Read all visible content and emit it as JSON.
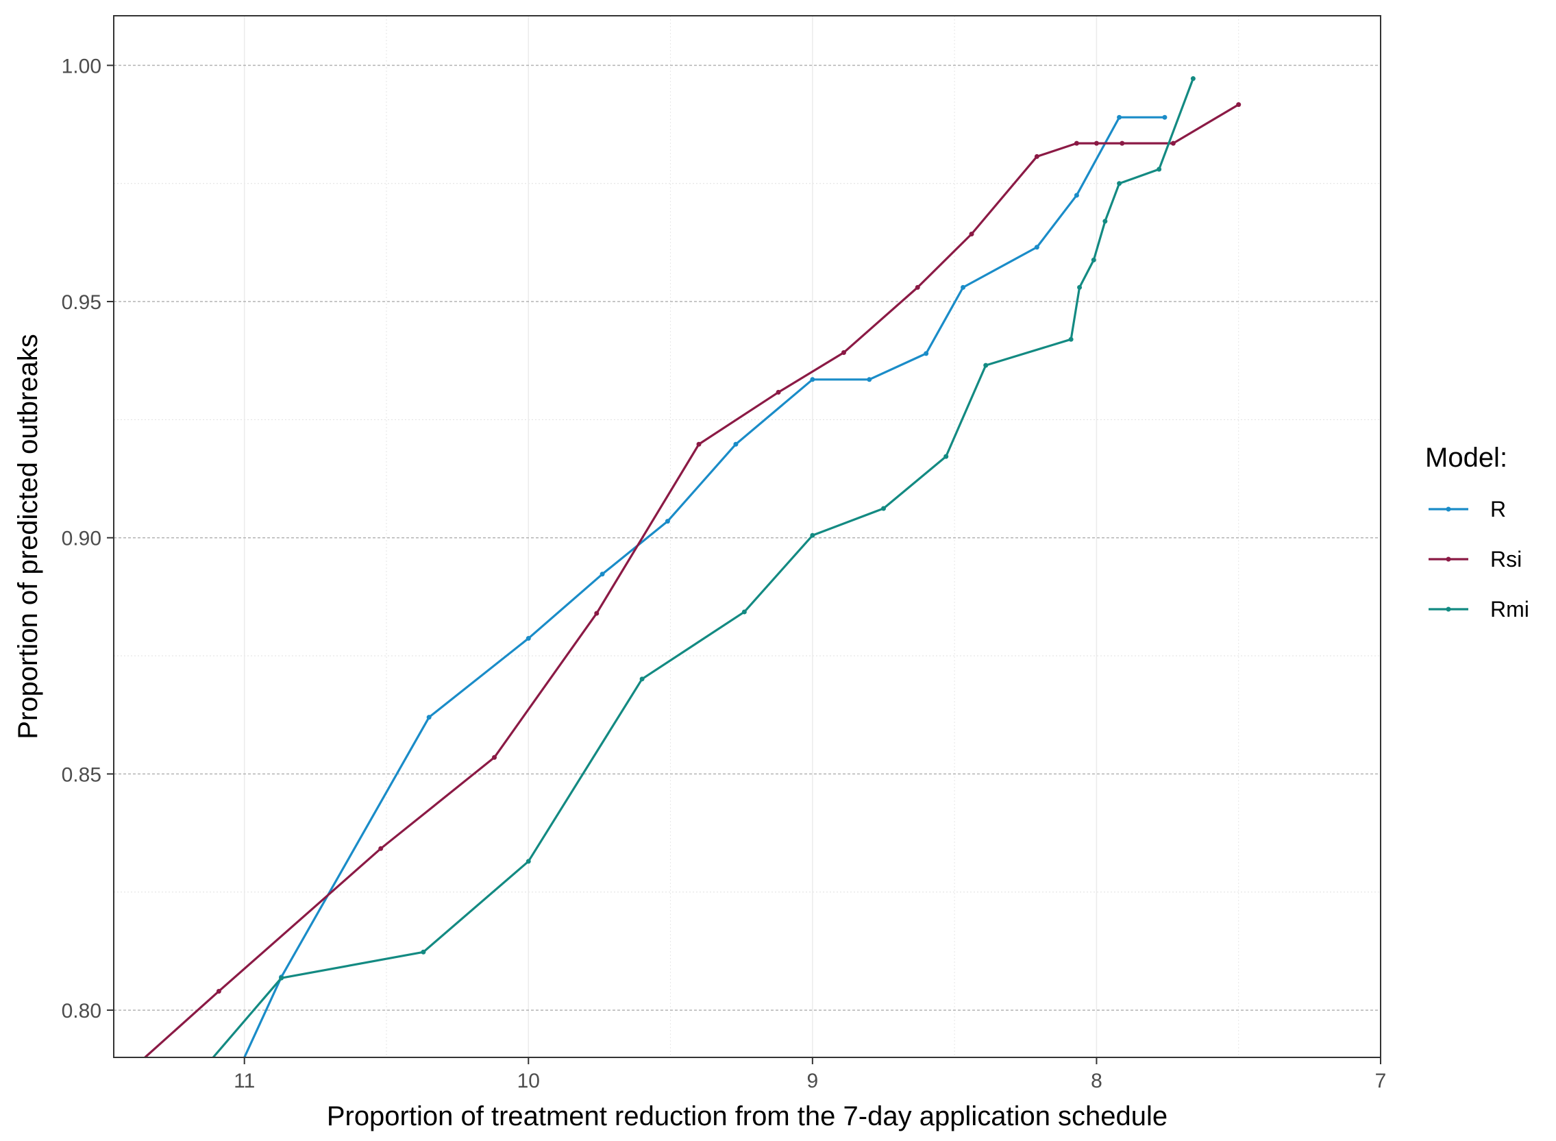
{
  "chart_data": {
    "type": "line",
    "title": "",
    "xlabel": "Proportion of treatment reduction from the 7-day application schedule",
    "ylabel": "Proportion of predicted outbreaks",
    "x_reversed": true,
    "xlim": [
      7,
      11.46
    ],
    "ylim": [
      0.79,
      1.0105
    ],
    "x_ticks": [
      11,
      10,
      9,
      8,
      7
    ],
    "x_tick_labels": [
      "11",
      "10",
      "9",
      "8",
      "7"
    ],
    "y_ticks": [
      0.8,
      0.85,
      0.9,
      0.95,
      1.0
    ],
    "y_tick_labels": [
      "0.80",
      "0.85",
      "0.90",
      "0.95",
      "1.00"
    ],
    "grid": {
      "major_y": "dashed",
      "minor": "dotted",
      "major_x": "solid-light"
    },
    "legend": {
      "title": "Model:",
      "position": "right"
    },
    "series": [
      {
        "name": "R",
        "color": "#1A8CC8",
        "points": [
          [
            11.0,
            0.79
          ],
          [
            10.87,
            0.807
          ],
          [
            10.35,
            0.862
          ],
          [
            10.0,
            0.8787
          ],
          [
            9.74,
            0.8923
          ],
          [
            9.51,
            0.9035
          ],
          [
            9.27,
            0.9198
          ],
          [
            9.0,
            0.9335
          ],
          [
            8.8,
            0.9335
          ],
          [
            8.6,
            0.939
          ],
          [
            8.47,
            0.953
          ],
          [
            8.21,
            0.9615
          ],
          [
            8.07,
            0.9725
          ],
          [
            7.92,
            0.989
          ],
          [
            7.76,
            0.989
          ]
        ]
      },
      {
        "name": "Rsi",
        "color": "#8B1A45",
        "points": [
          [
            11.35,
            0.79
          ],
          [
            11.09,
            0.804
          ],
          [
            10.52,
            0.8342
          ],
          [
            10.12,
            0.8535
          ],
          [
            9.76,
            0.884
          ],
          [
            9.4,
            0.9198
          ],
          [
            9.12,
            0.9308
          ],
          [
            8.89,
            0.9392
          ],
          [
            8.63,
            0.953
          ],
          [
            8.44,
            0.9643
          ],
          [
            8.21,
            0.9807
          ],
          [
            8.07,
            0.9835
          ],
          [
            8.0,
            0.9835
          ],
          [
            7.91,
            0.9835
          ],
          [
            7.73,
            0.9835
          ],
          [
            7.5,
            0.9917
          ]
        ]
      },
      {
        "name": "Rmi",
        "color": "#138A82",
        "points": [
          [
            11.11,
            0.79
          ],
          [
            10.87,
            0.8068
          ],
          [
            10.37,
            0.8123
          ],
          [
            10.0,
            0.8315
          ],
          [
            9.6,
            0.8701
          ],
          [
            9.24,
            0.8843
          ],
          [
            9.0,
            0.9005
          ],
          [
            8.75,
            0.9062
          ],
          [
            8.53,
            0.9172
          ],
          [
            8.39,
            0.9365
          ],
          [
            8.09,
            0.942
          ],
          [
            8.06,
            0.953
          ],
          [
            8.01,
            0.9588
          ],
          [
            7.97,
            0.967
          ],
          [
            7.92,
            0.975
          ],
          [
            7.78,
            0.978
          ],
          [
            7.66,
            0.9972
          ]
        ]
      }
    ]
  }
}
